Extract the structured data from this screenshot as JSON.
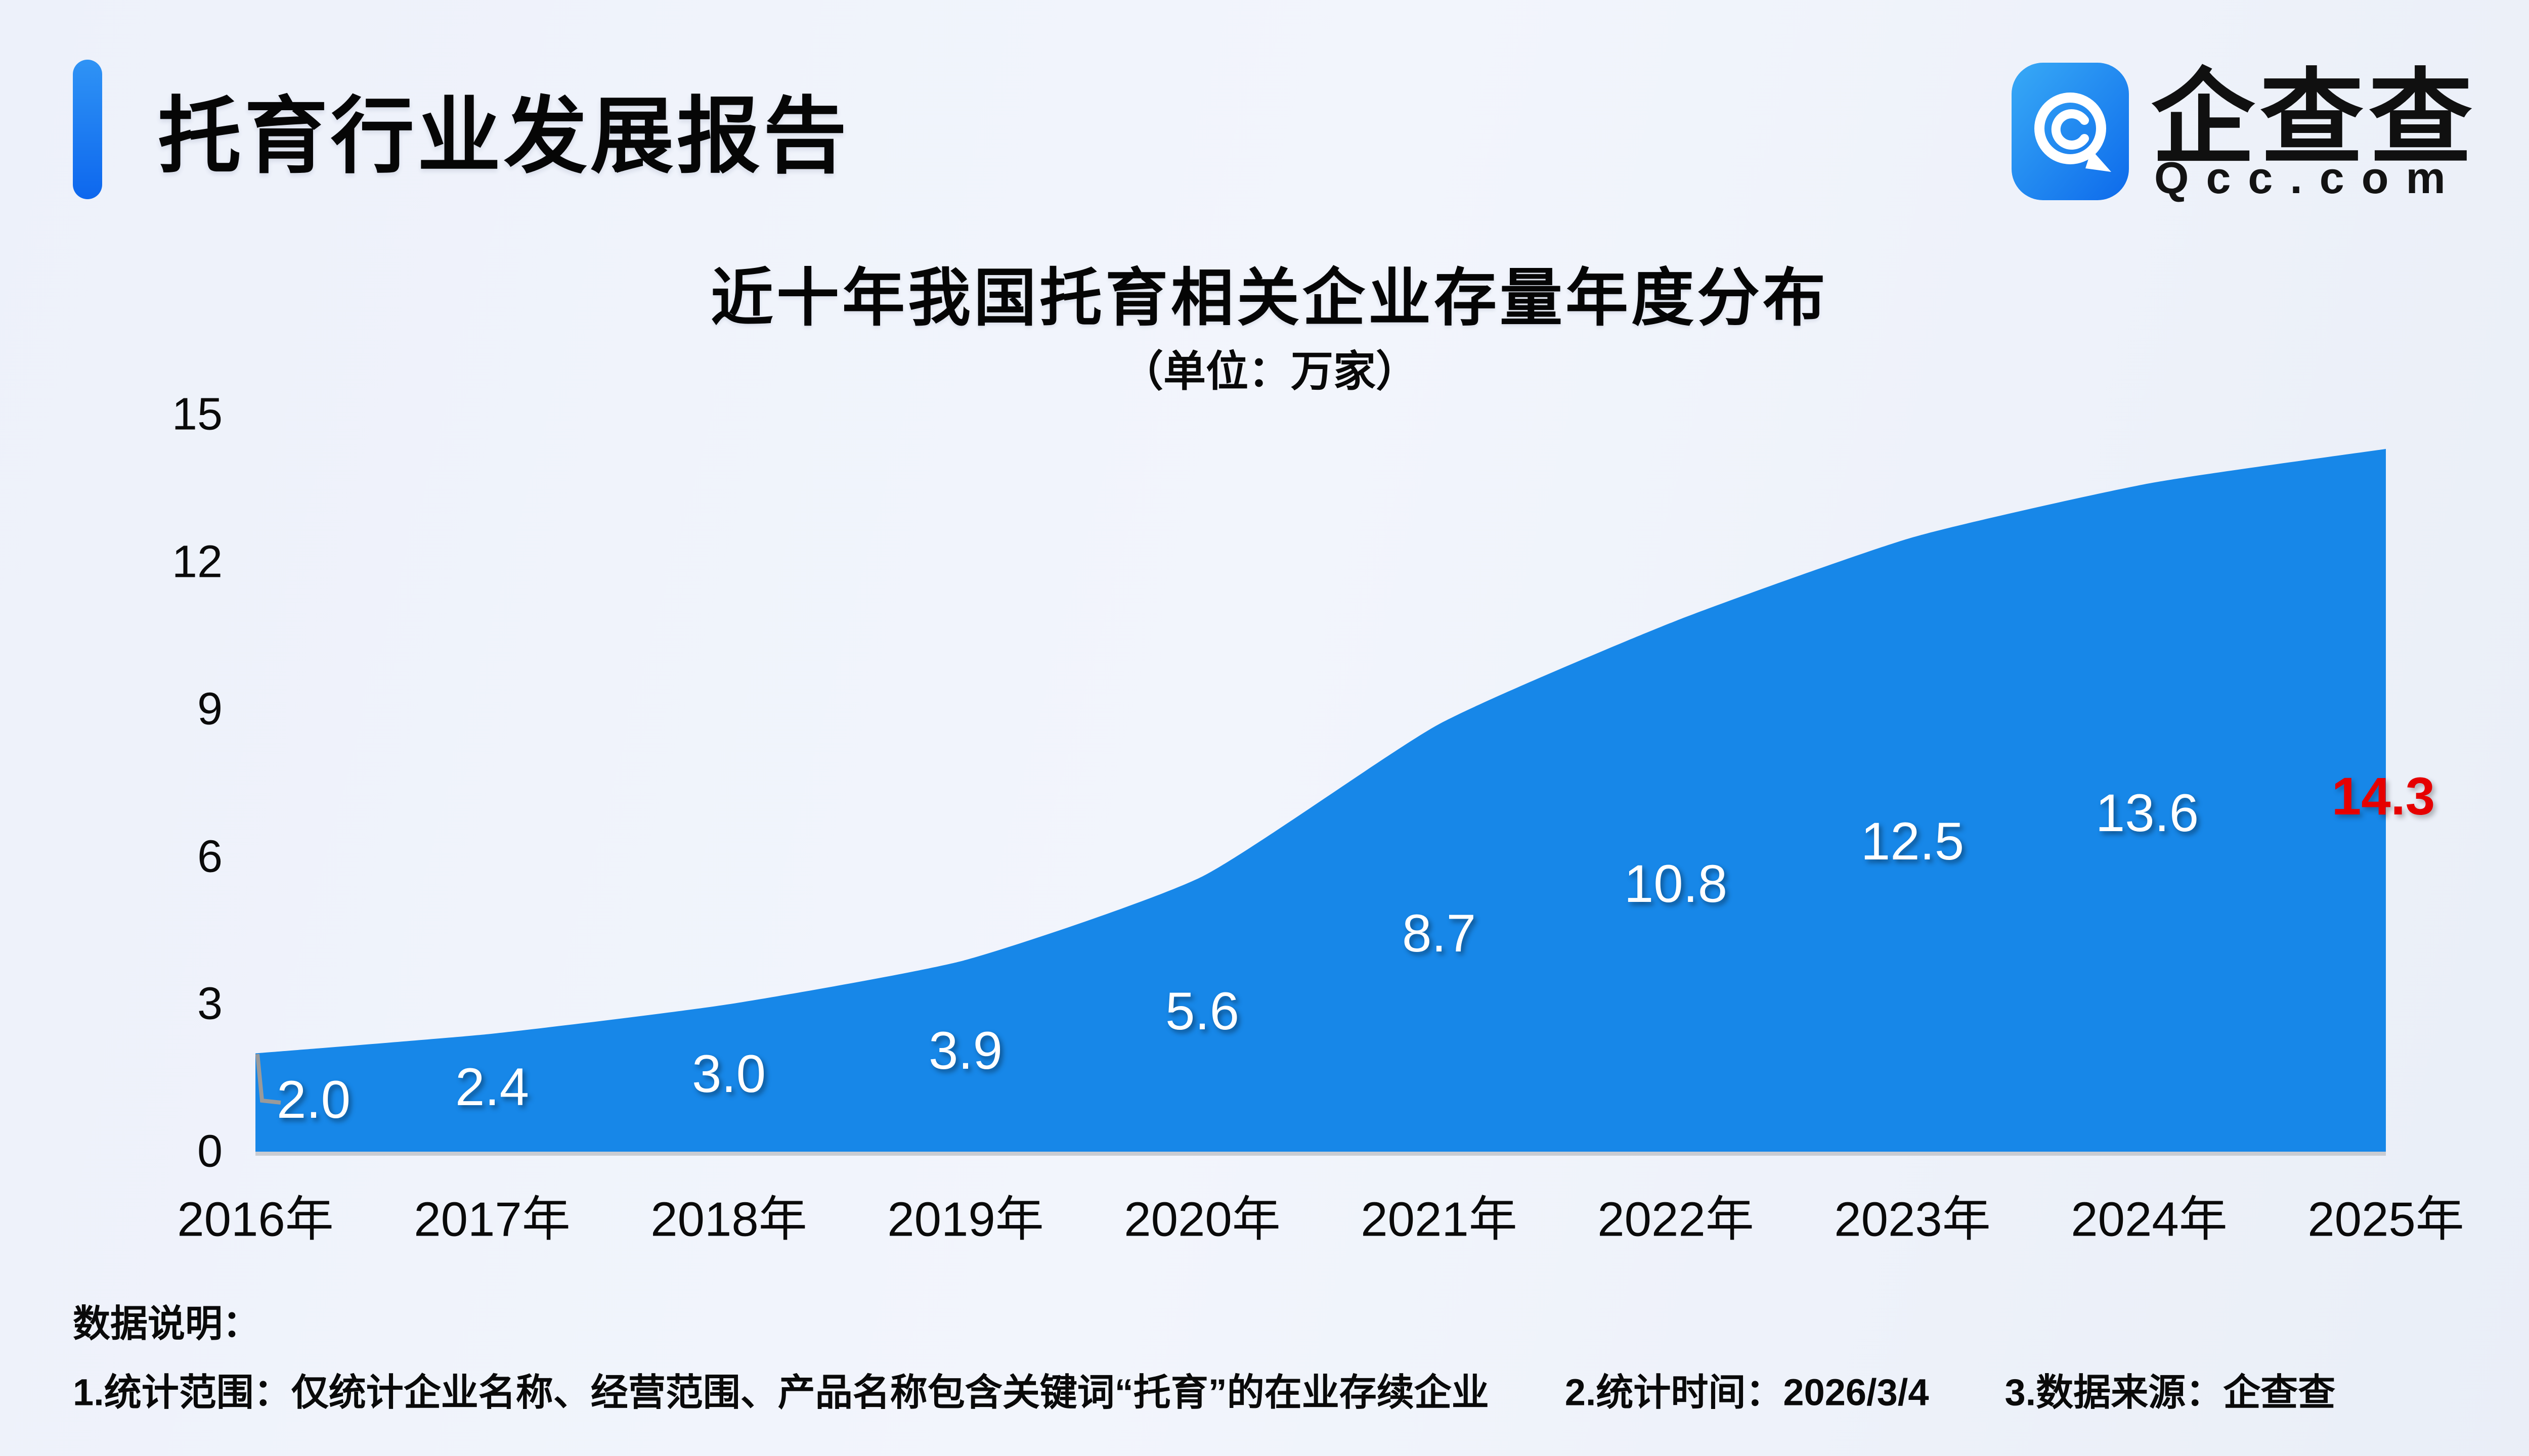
{
  "header": {
    "title": "托育行业发展报告"
  },
  "logo": {
    "icon": "qcc-spiral-icon",
    "brand": "企查查",
    "site": "Qcc.com"
  },
  "chart_data": {
    "type": "area",
    "title": "近十年我国托育相关企业存量年度分布",
    "subtitle": "（单位：万家）",
    "unit": "万家",
    "categories": [
      "2016年",
      "2017年",
      "2018年",
      "2019年",
      "2020年",
      "2021年",
      "2022年",
      "2023年",
      "2024年",
      "2025年"
    ],
    "values": [
      2.0,
      2.4,
      3.0,
      3.9,
      5.6,
      8.7,
      10.8,
      12.5,
      13.6,
      14.3
    ],
    "ylim": [
      0,
      15
    ],
    "yticks": [
      0,
      3,
      6,
      9,
      12,
      15
    ],
    "grid": false,
    "legend": "none",
    "area_color": "#1787e8",
    "label_color": "#ffffff",
    "highlight_index": 9,
    "highlight_color": "#e60000",
    "baseline_color": "#c9ccd2",
    "corner_mark_color": "#9a9a9a"
  },
  "notes": {
    "heading": "数据说明：",
    "items": [
      "1.统计范围：仅统计企业名称、经营范围、产品名称包含关键词“托育”的在业存续企业",
      "2.统计时间：2026/3/4",
      "3.数据来源：企查查"
    ]
  }
}
